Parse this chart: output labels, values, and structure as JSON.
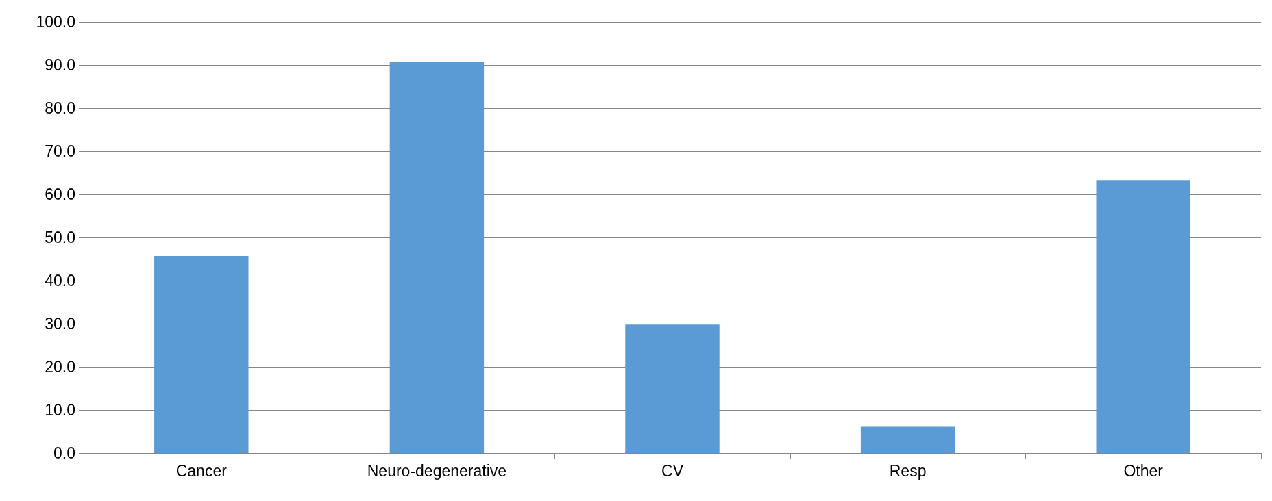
{
  "chart_data": {
    "type": "bar",
    "categories": [
      "Cancer",
      "Neuro-degenerative",
      "CV",
      "Resp",
      "Other"
    ],
    "values": [
      45.7,
      90.8,
      29.8,
      6.1,
      63.3
    ],
    "color": "#5b9bd5",
    "ylim": [
      0,
      100
    ],
    "yticks": [
      {
        "value": 0,
        "label": "0.0"
      },
      {
        "value": 10,
        "label": "10.0"
      },
      {
        "value": 20,
        "label": "20.0"
      },
      {
        "value": 30,
        "label": "30.0"
      },
      {
        "value": 40,
        "label": "40.0"
      },
      {
        "value": 50,
        "label": "50.0"
      },
      {
        "value": 60,
        "label": "60.0"
      },
      {
        "value": 70,
        "label": "70.0"
      },
      {
        "value": 80,
        "label": "80.0"
      },
      {
        "value": 90,
        "label": "90.0"
      },
      {
        "value": 100,
        "label": "100.0"
      }
    ],
    "grid": "y"
  }
}
